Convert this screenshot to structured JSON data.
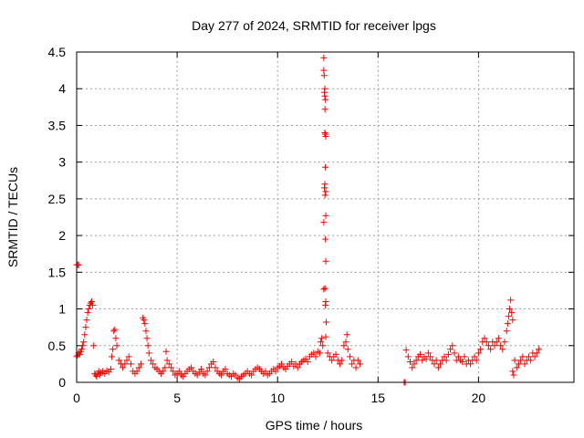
{
  "chart_data": {
    "type": "scatter",
    "title": "Day 277 of 2024, SRMTID for receiver lpgs",
    "xlabel": "GPS time / hours",
    "ylabel": "SRMTID / TECUs",
    "xlim": [
      0,
      24.75
    ],
    "ylim": [
      0,
      4.5
    ],
    "xticks": [
      0,
      5,
      10,
      15,
      20
    ],
    "xtick_labels": [
      "0",
      "5",
      "10",
      "15",
      "20"
    ],
    "yticks": [
      0,
      0.5,
      1,
      1.5,
      2,
      2.5,
      3,
      3.5,
      4,
      4.5
    ],
    "ytick_labels": [
      "0",
      "0.5",
      "1",
      "1.5",
      "2",
      "2.5",
      "3",
      "3.5",
      "4",
      "4.5"
    ],
    "grid": true,
    "marker": "plus",
    "color": "#ff0000",
    "series": [
      {
        "name": "SRMTID",
        "points": [
          [
            0.0,
            1.6
          ],
          [
            0.05,
            1.6
          ],
          [
            0.1,
            1.6
          ],
          [
            0.0,
            0.35
          ],
          [
            0.05,
            0.37
          ],
          [
            0.1,
            0.4
          ],
          [
            0.15,
            0.38
          ],
          [
            0.2,
            0.42
          ],
          [
            0.25,
            0.45
          ],
          [
            0.3,
            0.5
          ],
          [
            0.35,
            0.55
          ],
          [
            0.4,
            0.65
          ],
          [
            0.45,
            0.75
          ],
          [
            0.5,
            0.85
          ],
          [
            0.55,
            0.95
          ],
          [
            0.6,
            1.0
          ],
          [
            0.65,
            1.05
          ],
          [
            0.7,
            1.08
          ],
          [
            0.75,
            1.1
          ],
          [
            0.8,
            1.05
          ],
          [
            0.85,
            0.5
          ],
          [
            0.9,
            0.12
          ],
          [
            0.95,
            0.1
          ],
          [
            1.0,
            0.08
          ],
          [
            1.05,
            0.12
          ],
          [
            1.1,
            0.15
          ],
          [
            1.15,
            0.1
          ],
          [
            1.2,
            0.13
          ],
          [
            1.3,
            0.15
          ],
          [
            1.4,
            0.12
          ],
          [
            1.5,
            0.16
          ],
          [
            1.6,
            0.14
          ],
          [
            1.7,
            0.18
          ],
          [
            1.75,
            0.35
          ],
          [
            1.8,
            0.45
          ],
          [
            1.85,
            0.7
          ],
          [
            1.9,
            0.72
          ],
          [
            1.95,
            0.6
          ],
          [
            2.0,
            0.5
          ],
          [
            2.1,
            0.3
          ],
          [
            2.2,
            0.25
          ],
          [
            2.3,
            0.2
          ],
          [
            2.4,
            0.25
          ],
          [
            2.5,
            0.3
          ],
          [
            2.6,
            0.35
          ],
          [
            2.7,
            0.25
          ],
          [
            2.8,
            0.15
          ],
          [
            2.9,
            0.12
          ],
          [
            3.0,
            0.15
          ],
          [
            3.1,
            0.2
          ],
          [
            3.2,
            0.25
          ],
          [
            3.3,
            0.88
          ],
          [
            3.35,
            0.85
          ],
          [
            3.4,
            0.8
          ],
          [
            3.45,
            0.7
          ],
          [
            3.5,
            0.6
          ],
          [
            3.55,
            0.5
          ],
          [
            3.6,
            0.4
          ],
          [
            3.7,
            0.3
          ],
          [
            3.8,
            0.25
          ],
          [
            3.9,
            0.2
          ],
          [
            4.0,
            0.18
          ],
          [
            4.1,
            0.15
          ],
          [
            4.2,
            0.12
          ],
          [
            4.3,
            0.15
          ],
          [
            4.4,
            0.2
          ],
          [
            4.45,
            0.42
          ],
          [
            4.5,
            0.3
          ],
          [
            4.6,
            0.25
          ],
          [
            4.7,
            0.2
          ],
          [
            4.8,
            0.15
          ],
          [
            4.9,
            0.1
          ],
          [
            5.0,
            0.12
          ],
          [
            5.1,
            0.15
          ],
          [
            5.2,
            0.1
          ],
          [
            5.3,
            0.08
          ],
          [
            5.4,
            0.12
          ],
          [
            5.5,
            0.15
          ],
          [
            5.6,
            0.18
          ],
          [
            5.7,
            0.2
          ],
          [
            5.8,
            0.15
          ],
          [
            5.9,
            0.12
          ],
          [
            6.0,
            0.1
          ],
          [
            6.1,
            0.14
          ],
          [
            6.2,
            0.18
          ],
          [
            6.3,
            0.12
          ],
          [
            6.4,
            0.1
          ],
          [
            6.5,
            0.15
          ],
          [
            6.6,
            0.2
          ],
          [
            6.7,
            0.25
          ],
          [
            6.8,
            0.28
          ],
          [
            6.9,
            0.2
          ],
          [
            7.0,
            0.15
          ],
          [
            7.1,
            0.12
          ],
          [
            7.2,
            0.1
          ],
          [
            7.3,
            0.15
          ],
          [
            7.4,
            0.18
          ],
          [
            7.5,
            0.12
          ],
          [
            7.6,
            0.1
          ],
          [
            7.7,
            0.08
          ],
          [
            7.8,
            0.12
          ],
          [
            7.9,
            0.1
          ],
          [
            8.0,
            0.06
          ],
          [
            8.1,
            0.05
          ],
          [
            8.2,
            0.08
          ],
          [
            8.3,
            0.1
          ],
          [
            8.4,
            0.12
          ],
          [
            8.5,
            0.15
          ],
          [
            8.6,
            0.12
          ],
          [
            8.7,
            0.1
          ],
          [
            8.8,
            0.15
          ],
          [
            8.9,
            0.18
          ],
          [
            9.0,
            0.2
          ],
          [
            9.1,
            0.18
          ],
          [
            9.2,
            0.15
          ],
          [
            9.3,
            0.12
          ],
          [
            9.4,
            0.15
          ],
          [
            9.5,
            0.1
          ],
          [
            9.6,
            0.12
          ],
          [
            9.7,
            0.15
          ],
          [
            9.8,
            0.18
          ],
          [
            9.9,
            0.15
          ],
          [
            10.0,
            0.2
          ],
          [
            10.1,
            0.22
          ],
          [
            10.2,
            0.25
          ],
          [
            10.3,
            0.2
          ],
          [
            10.4,
            0.18
          ],
          [
            10.5,
            0.22
          ],
          [
            10.6,
            0.25
          ],
          [
            10.7,
            0.28
          ],
          [
            10.8,
            0.22
          ],
          [
            10.9,
            0.25
          ],
          [
            11.0,
            0.2
          ],
          [
            11.1,
            0.25
          ],
          [
            11.2,
            0.28
          ],
          [
            11.3,
            0.3
          ],
          [
            11.4,
            0.32
          ],
          [
            11.5,
            0.28
          ],
          [
            11.6,
            0.35
          ],
          [
            11.7,
            0.38
          ],
          [
            11.8,
            0.4
          ],
          [
            11.9,
            0.35
          ],
          [
            12.0,
            0.42
          ],
          [
            12.1,
            0.4
          ],
          [
            12.15,
            0.55
          ],
          [
            12.2,
            0.6
          ],
          [
            12.25,
            0.5
          ],
          [
            12.3,
            4.42
          ],
          [
            12.3,
            4.25
          ],
          [
            12.32,
            4.18
          ],
          [
            12.35,
            4.0
          ],
          [
            12.33,
            3.95
          ],
          [
            12.35,
            3.9
          ],
          [
            12.38,
            3.85
          ],
          [
            12.36,
            3.72
          ],
          [
            12.35,
            3.4
          ],
          [
            12.38,
            3.38
          ],
          [
            12.4,
            3.35
          ],
          [
            12.38,
            2.93
          ],
          [
            12.35,
            2.7
          ],
          [
            12.33,
            2.65
          ],
          [
            12.4,
            2.6
          ],
          [
            12.36,
            2.55
          ],
          [
            12.4,
            2.27
          ],
          [
            12.3,
            2.18
          ],
          [
            12.38,
            1.95
          ],
          [
            12.4,
            1.65
          ],
          [
            12.3,
            1.27
          ],
          [
            12.36,
            1.28
          ],
          [
            12.4,
            1.1
          ],
          [
            12.38,
            1.05
          ],
          [
            12.42,
            0.82
          ],
          [
            12.4,
            0.62
          ],
          [
            12.5,
            0.4
          ],
          [
            12.6,
            0.35
          ],
          [
            12.7,
            0.3
          ],
          [
            12.8,
            0.35
          ],
          [
            12.9,
            0.38
          ],
          [
            13.0,
            0.3
          ],
          [
            13.1,
            0.25
          ],
          [
            13.2,
            0.3
          ],
          [
            13.3,
            0.5
          ],
          [
            13.4,
            0.55
          ],
          [
            13.45,
            0.65
          ],
          [
            13.5,
            0.45
          ],
          [
            13.6,
            0.35
          ],
          [
            13.7,
            0.25
          ],
          [
            13.8,
            0.3
          ],
          [
            13.9,
            0.2
          ],
          [
            14.0,
            0.3
          ],
          [
            14.1,
            0.25
          ],
          [
            16.3,
            0.0
          ],
          [
            16.35,
            0.0
          ],
          [
            16.4,
            0.44
          ],
          [
            16.5,
            0.35
          ],
          [
            16.6,
            0.28
          ],
          [
            16.7,
            0.2
          ],
          [
            16.8,
            0.25
          ],
          [
            16.9,
            0.3
          ],
          [
            17.0,
            0.35
          ],
          [
            17.1,
            0.38
          ],
          [
            17.2,
            0.3
          ],
          [
            17.3,
            0.35
          ],
          [
            17.4,
            0.32
          ],
          [
            17.5,
            0.4
          ],
          [
            17.6,
            0.35
          ],
          [
            17.7,
            0.3
          ],
          [
            17.8,
            0.25
          ],
          [
            17.9,
            0.3
          ],
          [
            18.0,
            0.2
          ],
          [
            18.1,
            0.25
          ],
          [
            18.2,
            0.3
          ],
          [
            18.3,
            0.35
          ],
          [
            18.4,
            0.3
          ],
          [
            18.5,
            0.38
          ],
          [
            18.6,
            0.45
          ],
          [
            18.7,
            0.5
          ],
          [
            18.8,
            0.4
          ],
          [
            18.9,
            0.3
          ],
          [
            19.0,
            0.35
          ],
          [
            19.1,
            0.3
          ],
          [
            19.2,
            0.28
          ],
          [
            19.3,
            0.35
          ],
          [
            19.4,
            0.25
          ],
          [
            19.5,
            0.3
          ],
          [
            19.6,
            0.25
          ],
          [
            19.7,
            0.3
          ],
          [
            19.8,
            0.35
          ],
          [
            19.9,
            0.3
          ],
          [
            20.0,
            0.4
          ],
          [
            20.1,
            0.45
          ],
          [
            20.2,
            0.55
          ],
          [
            20.3,
            0.6
          ],
          [
            20.4,
            0.55
          ],
          [
            20.5,
            0.5
          ],
          [
            20.6,
            0.45
          ],
          [
            20.7,
            0.55
          ],
          [
            20.8,
            0.5
          ],
          [
            20.9,
            0.55
          ],
          [
            21.0,
            0.6
          ],
          [
            21.1,
            0.5
          ],
          [
            21.2,
            0.45
          ],
          [
            21.3,
            0.55
          ],
          [
            21.4,
            0.7
          ],
          [
            21.45,
            0.8
          ],
          [
            21.5,
            0.9
          ],
          [
            21.55,
            1.0
          ],
          [
            21.6,
            1.12
          ],
          [
            21.65,
            0.95
          ],
          [
            21.7,
            0.85
          ],
          [
            21.7,
            0.15
          ],
          [
            21.75,
            0.1
          ],
          [
            21.8,
            0.3
          ],
          [
            21.9,
            0.2
          ],
          [
            22.0,
            0.25
          ],
          [
            22.1,
            0.3
          ],
          [
            22.2,
            0.35
          ],
          [
            22.3,
            0.25
          ],
          [
            22.4,
            0.3
          ],
          [
            22.5,
            0.35
          ],
          [
            22.6,
            0.3
          ],
          [
            22.7,
            0.4
          ],
          [
            22.8,
            0.35
          ],
          [
            22.9,
            0.4
          ],
          [
            23.0,
            0.45
          ]
        ]
      }
    ]
  }
}
